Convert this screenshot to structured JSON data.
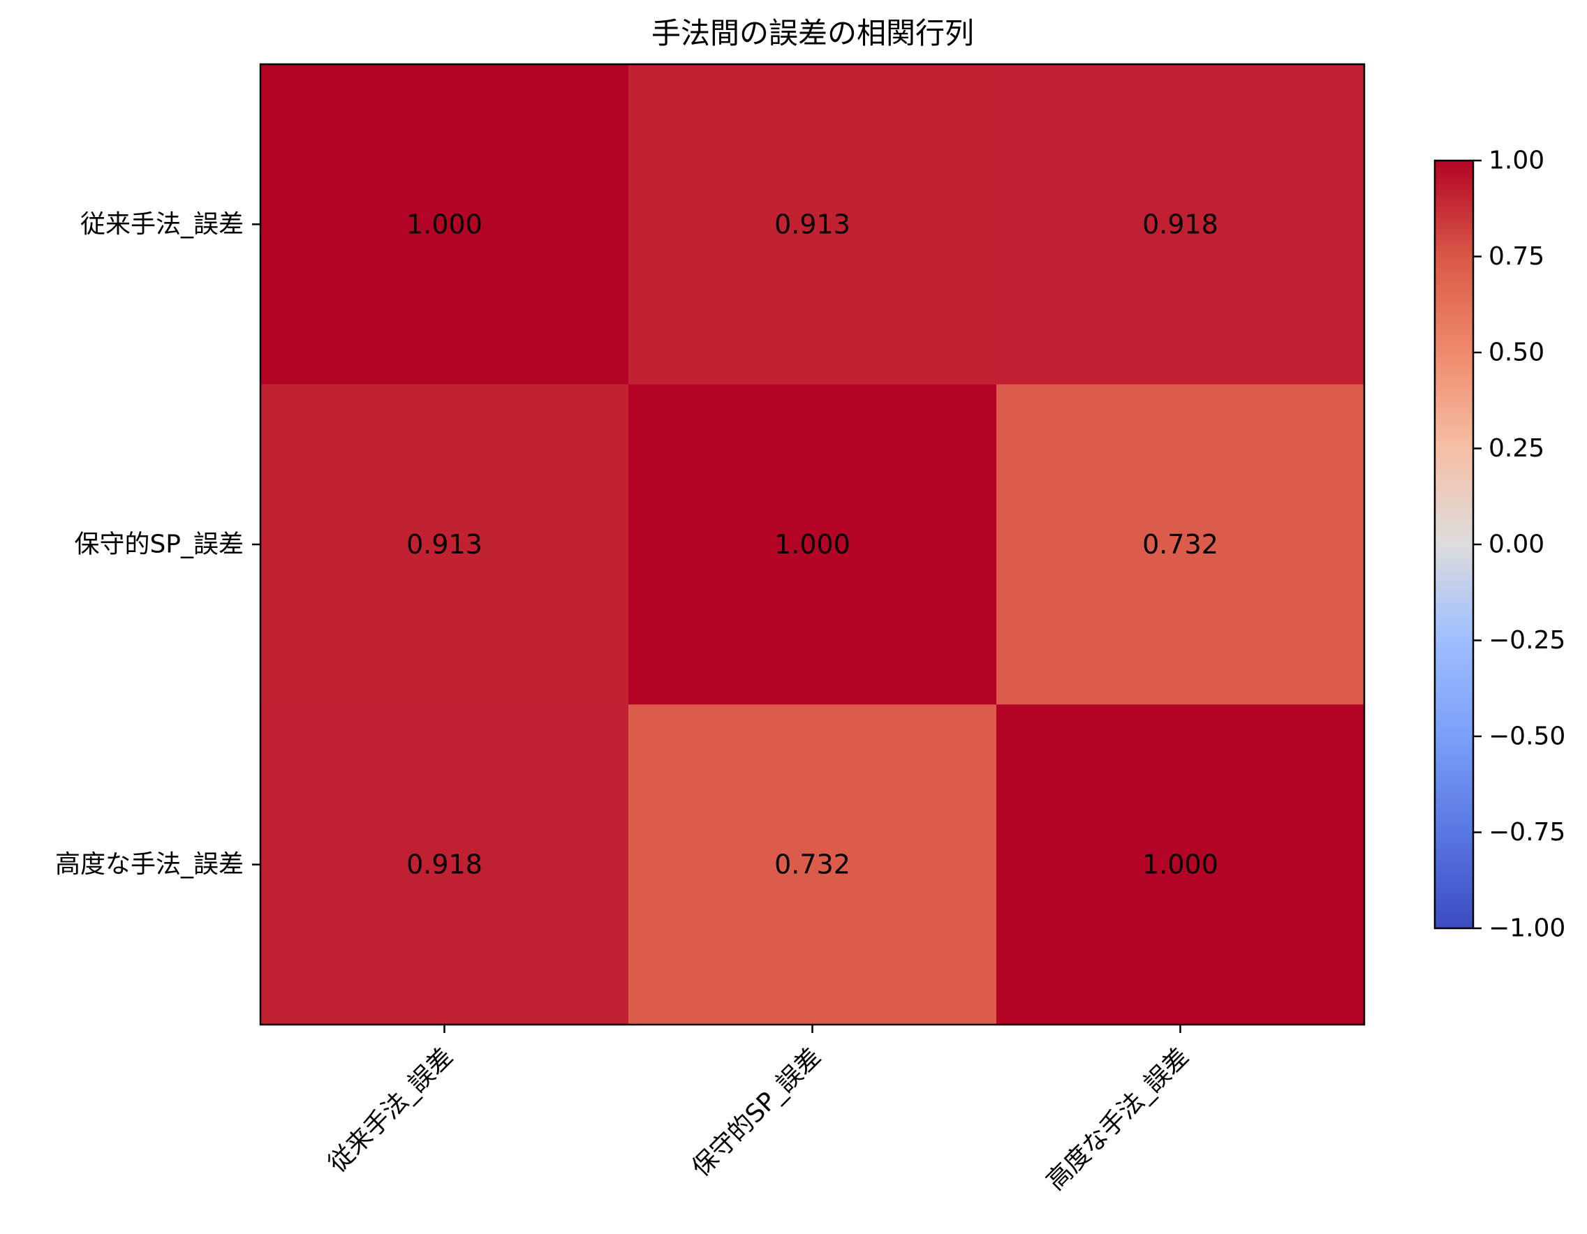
{
  "chart_data": {
    "type": "heatmap",
    "title": "手法間の誤差の相関行列",
    "x_labels": [
      "従来手法_誤差",
      "保守的SP_誤差",
      "高度な手法_誤差"
    ],
    "y_labels": [
      "従来手法_誤差",
      "保守的SP_誤差",
      "高度な手法_誤差"
    ],
    "values": [
      [
        1.0,
        0.913,
        0.918
      ],
      [
        0.913,
        1.0,
        0.732
      ],
      [
        0.918,
        0.732,
        1.0
      ]
    ],
    "value_labels": [
      [
        "1.000",
        "0.913",
        "0.918"
      ],
      [
        "0.913",
        "1.000",
        "0.732"
      ],
      [
        "0.918",
        "0.732",
        "1.000"
      ]
    ],
    "colormap": "coolwarm",
    "vmin": -1.0,
    "vmax": 1.0,
    "colorbar_ticks": [
      "1.00",
      "0.75",
      "0.50",
      "0.25",
      "0.00",
      "−0.25",
      "−0.50",
      "−0.75",
      "−1.00"
    ],
    "colorbar_tick_values": [
      1.0,
      0.75,
      0.5,
      0.25,
      0.0,
      -0.25,
      -0.5,
      -0.75,
      -1.0
    ],
    "colors": {
      "val_1_000": "#b40426",
      "val_0_918": "#c12b30",
      "val_0_913": "#c32e31",
      "val_0_732": "#df634e"
    }
  }
}
